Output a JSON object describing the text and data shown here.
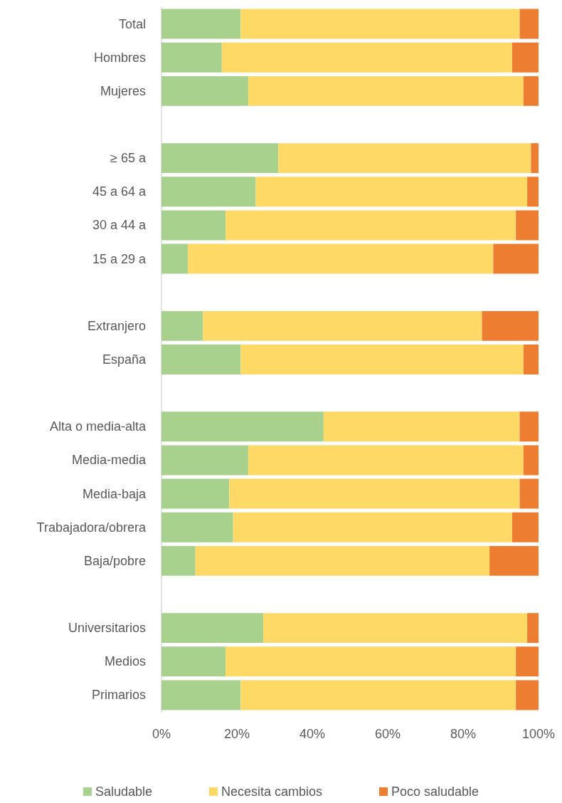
{
  "chart_data": {
    "type": "bar",
    "orientation": "horizontal",
    "stacked": true,
    "categories": [
      "Total",
      "Hombres",
      "Mujeres",
      null,
      "≥ 65 a",
      "45 a 64 a",
      "30 a 44 a",
      "15 a 29 a",
      null,
      "Extranjero",
      "España",
      null,
      "Alta o media-alta",
      "Media-media",
      "Media-baja",
      "Trabajadora/obrera",
      "Baja/pobre",
      null,
      "Universitarios",
      "Medios",
      "Primarios"
    ],
    "series": [
      {
        "name": "Saludable",
        "color": "#a9d18e",
        "values": [
          21,
          16,
          23,
          null,
          31,
          25,
          17,
          7,
          null,
          11,
          21,
          null,
          43,
          23,
          18,
          19,
          9,
          null,
          27,
          17,
          21
        ]
      },
      {
        "name": "Necesita cambios",
        "color": "#ffd966",
        "values": [
          74,
          77,
          73,
          null,
          67,
          72,
          77,
          81,
          null,
          74,
          75,
          null,
          52,
          73,
          77,
          74,
          78,
          null,
          70,
          77,
          73
        ]
      },
      {
        "name": "Poco saludable",
        "color": "#ed7d31",
        "values": [
          5,
          7,
          4,
          null,
          2,
          3,
          6,
          12,
          null,
          15,
          4,
          null,
          5,
          4,
          5,
          7,
          13,
          null,
          3,
          6,
          6
        ]
      }
    ],
    "xlim": [
      0,
      100
    ],
    "xticks": [
      {
        "value": 0,
        "label": "0%"
      },
      {
        "value": 20,
        "label": "20%"
      },
      {
        "value": 40,
        "label": "40%"
      },
      {
        "value": 60,
        "label": "60%"
      },
      {
        "value": 80,
        "label": "80%"
      },
      {
        "value": 100,
        "label": "100%"
      }
    ],
    "grid": false,
    "legend": "bottom"
  }
}
